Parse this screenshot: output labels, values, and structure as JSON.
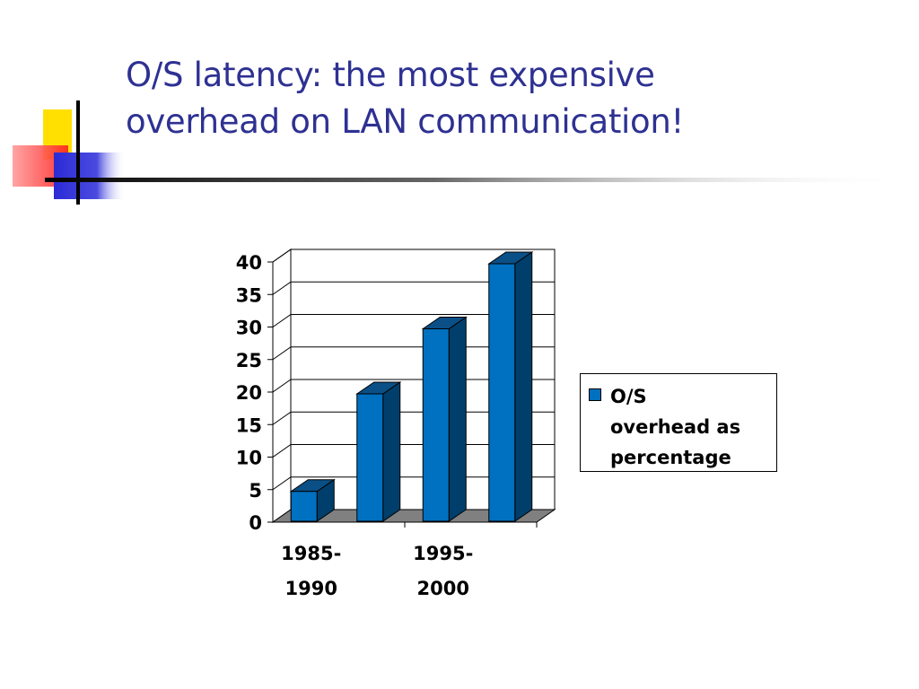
{
  "slide": {
    "title_line1": "O/S latency: the most expensive",
    "title_line2": "overhead on LAN communication!"
  },
  "colors": {
    "title": "#2e3192",
    "bar_front": "#0070c0",
    "bar_side": "#003f6b",
    "bar_top": "#0a4f86",
    "floor": "#808080",
    "deco_yellow": "#ffe000",
    "deco_red": "#ff3030",
    "deco_blue": "#2b2bd6"
  },
  "chart_data": {
    "type": "bar",
    "title": "",
    "xlabel": "",
    "ylabel": "",
    "ylim": [
      0,
      40
    ],
    "yticks": [
      "0",
      "5",
      "10",
      "15",
      "20",
      "25",
      "30",
      "35",
      "40"
    ],
    "categories": [
      "1985-1990",
      "",
      "1995-2000",
      ""
    ],
    "category_labels": [
      [
        "1985-",
        "1990"
      ],
      [],
      [
        "1995-",
        "2000"
      ],
      []
    ],
    "series": [
      {
        "name": "O/S overhead as percentage",
        "values": [
          5,
          20,
          30,
          40
        ]
      }
    ],
    "legend": {
      "position": "right",
      "lines": [
        "O/S",
        "overhead as",
        "percentage"
      ]
    },
    "grid": true,
    "style": "3d"
  }
}
